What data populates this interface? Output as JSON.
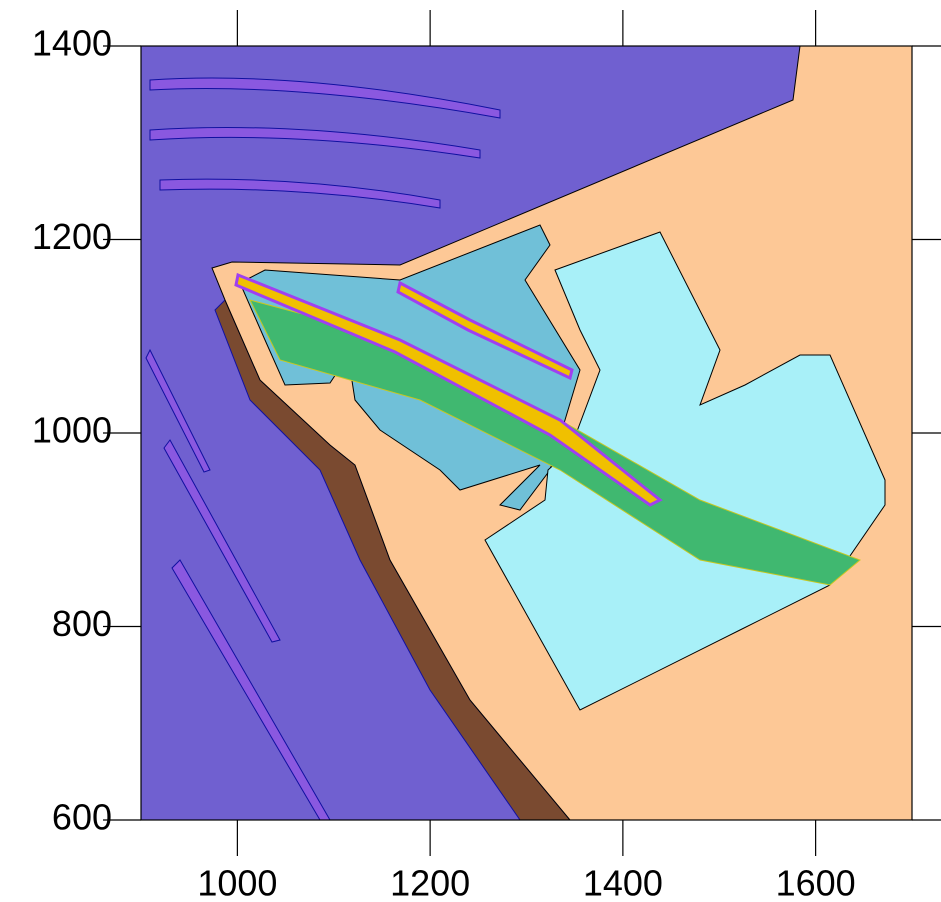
{
  "chart_data": {
    "type": "contour",
    "xlim": [
      900,
      1700
    ],
    "xticks": [
      1000,
      1200,
      1400,
      1600
    ],
    "ylim": [
      600,
      1400
    ],
    "yticks": [
      600,
      800,
      1000,
      1200,
      1400
    ]
  }
}
